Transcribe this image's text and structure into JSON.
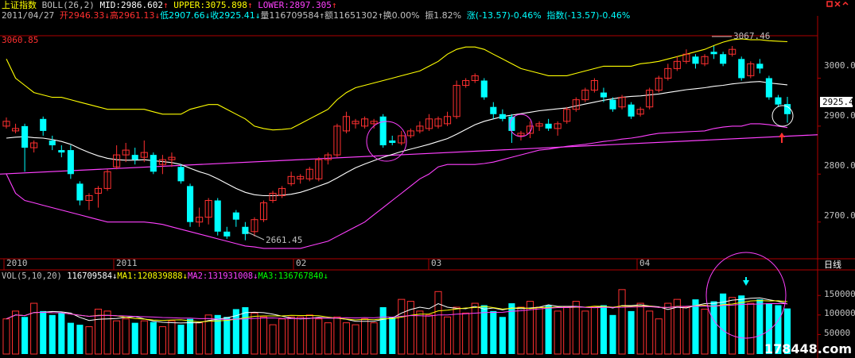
{
  "header": {
    "index_name": "上证指数",
    "indicator": "BOLL(26,2)",
    "mid": "MID:2986.602",
    "upper": "UPPER:3075.898",
    "lower": "LOWER:2897.305",
    "date": "2011/04/27",
    "open": "开2946.33",
    "high": "高2961.13",
    "low": "低2907.66",
    "close": "收2925.41",
    "volume": "量116709584",
    "amount": "额11651302",
    "turnover": "换0.00%",
    "amplitude": "振1.82%",
    "change": "涨(-13.57)-0.46%",
    "index_change": "指数(-13.57)-0.46%"
  },
  "price_axis": {
    "ticks": [
      "3000.0",
      "2900.0",
      "2800.0",
      "2700.0"
    ],
    "current_value": "2925.4",
    "ref_line_label": "3060.85",
    "max_label": "3067.46",
    "min_label": "2661.45"
  },
  "time_axis": {
    "labels": [
      "2010",
      "2011",
      "02",
      "03",
      "04"
    ],
    "period": "日线"
  },
  "volume": {
    "title": "VOL(5,10,20)",
    "value": "116709584",
    "ma1": "MA1:120839888",
    "ma2": "MA2:131931008",
    "ma3": "MA3:136767840",
    "ticks": [
      "150000",
      "100000",
      "50000"
    ]
  },
  "watermark": "178448.com",
  "colors": {
    "up": "#ff3030",
    "down": "#00ffff",
    "mid_line": "#ffffff",
    "upper_line": "#ffff00",
    "lower_line": "#ff40ff",
    "trend_line": "#ff40ff",
    "axis": "#b00000"
  },
  "chart_data": {
    "type": "candlestick",
    "candles": [
      {
        "o": 2900,
        "c": 2910,
        "h": 2918,
        "l": 2895
      },
      {
        "o": 2890,
        "c": 2895,
        "h": 2905,
        "l": 2885
      },
      {
        "o": 2900,
        "c": 2855,
        "h": 2905,
        "l": 2805
      },
      {
        "o": 2855,
        "c": 2865,
        "h": 2870,
        "l": 2845
      },
      {
        "o": 2915,
        "c": 2890,
        "h": 2920,
        "l": 2880
      },
      {
        "o": 2870,
        "c": 2860,
        "h": 2880,
        "l": 2850
      },
      {
        "o": 2850,
        "c": 2845,
        "h": 2860,
        "l": 2835
      },
      {
        "o": 2850,
        "c": 2800,
        "h": 2860,
        "l": 2790
      },
      {
        "o": 2780,
        "c": 2745,
        "h": 2785,
        "l": 2735
      },
      {
        "o": 2745,
        "c": 2755,
        "h": 2760,
        "l": 2725
      },
      {
        "o": 2760,
        "c": 2770,
        "h": 2775,
        "l": 2730
      },
      {
        "o": 2770,
        "c": 2805,
        "h": 2810,
        "l": 2765
      },
      {
        "o": 2815,
        "c": 2840,
        "h": 2860,
        "l": 2810
      },
      {
        "o": 2840,
        "c": 2850,
        "h": 2865,
        "l": 2825
      },
      {
        "o": 2840,
        "c": 2830,
        "h": 2855,
        "l": 2820
      },
      {
        "o": 2835,
        "c": 2845,
        "h": 2870,
        "l": 2825
      },
      {
        "o": 2840,
        "c": 2805,
        "h": 2845,
        "l": 2800
      },
      {
        "o": 2820,
        "c": 2830,
        "h": 2840,
        "l": 2800
      },
      {
        "o": 2830,
        "c": 2835,
        "h": 2845,
        "l": 2815
      },
      {
        "o": 2815,
        "c": 2785,
        "h": 2820,
        "l": 2780
      },
      {
        "o": 2775,
        "c": 2700,
        "h": 2780,
        "l": 2690
      },
      {
        "o": 2700,
        "c": 2710,
        "h": 2730,
        "l": 2690
      },
      {
        "o": 2710,
        "c": 2745,
        "h": 2750,
        "l": 2695
      },
      {
        "o": 2745,
        "c": 2680,
        "h": 2750,
        "l": 2672
      },
      {
        "o": 2680,
        "c": 2670,
        "h": 2690,
        "l": 2665
      },
      {
        "o": 2720,
        "c": 2705,
        "h": 2725,
        "l": 2690
      },
      {
        "o": 2690,
        "c": 2675,
        "h": 2700,
        "l": 2662
      },
      {
        "o": 2680,
        "c": 2705,
        "h": 2710,
        "l": 2670
      },
      {
        "o": 2705,
        "c": 2740,
        "h": 2745,
        "l": 2700
      },
      {
        "o": 2745,
        "c": 2760,
        "h": 2765,
        "l": 2740
      },
      {
        "o": 2755,
        "c": 2770,
        "h": 2775,
        "l": 2750
      },
      {
        "o": 2780,
        "c": 2795,
        "h": 2805,
        "l": 2775
      },
      {
        "o": 2790,
        "c": 2795,
        "h": 2800,
        "l": 2780
      },
      {
        "o": 2790,
        "c": 2810,
        "h": 2815,
        "l": 2785
      },
      {
        "o": 2790,
        "c": 2830,
        "h": 2835,
        "l": 2785
      },
      {
        "o": 2830,
        "c": 2840,
        "h": 2845,
        "l": 2820
      },
      {
        "o": 2840,
        "c": 2900,
        "h": 2905,
        "l": 2835
      },
      {
        "o": 2890,
        "c": 2920,
        "h": 2930,
        "l": 2885
      },
      {
        "o": 2905,
        "c": 2910,
        "h": 2915,
        "l": 2895
      },
      {
        "o": 2900,
        "c": 2915,
        "h": 2920,
        "l": 2895
      },
      {
        "o": 2905,
        "c": 2910,
        "h": 2915,
        "l": 2895
      },
      {
        "o": 2920,
        "c": 2860,
        "h": 2925,
        "l": 2855
      },
      {
        "o": 2870,
        "c": 2865,
        "h": 2880,
        "l": 2860
      },
      {
        "o": 2865,
        "c": 2880,
        "h": 2890,
        "l": 2860
      },
      {
        "o": 2880,
        "c": 2890,
        "h": 2895,
        "l": 2875
      },
      {
        "o": 2890,
        "c": 2900,
        "h": 2910,
        "l": 2885
      },
      {
        "o": 2895,
        "c": 2915,
        "h": 2925,
        "l": 2890
      },
      {
        "o": 2900,
        "c": 2915,
        "h": 2920,
        "l": 2895
      },
      {
        "o": 2905,
        "c": 2920,
        "h": 2930,
        "l": 2900
      },
      {
        "o": 2920,
        "c": 2985,
        "h": 2995,
        "l": 2915
      },
      {
        "o": 2985,
        "c": 2995,
        "h": 3000,
        "l": 2980
      },
      {
        "o": 2995,
        "c": 3005,
        "h": 3010,
        "l": 2990
      },
      {
        "o": 2995,
        "c": 2960,
        "h": 3000,
        "l": 2955
      },
      {
        "o": 2940,
        "c": 2925,
        "h": 2950,
        "l": 2915
      },
      {
        "o": 2925,
        "c": 2915,
        "h": 2935,
        "l": 2910
      },
      {
        "o": 2920,
        "c": 2890,
        "h": 2925,
        "l": 2865
      },
      {
        "o": 2880,
        "c": 2885,
        "h": 2890,
        "l": 2870
      },
      {
        "o": 2885,
        "c": 2900,
        "h": 2910,
        "l": 2875
      },
      {
        "o": 2900,
        "c": 2905,
        "h": 2910,
        "l": 2890
      },
      {
        "o": 2905,
        "c": 2895,
        "h": 2915,
        "l": 2890
      },
      {
        "o": 2895,
        "c": 2905,
        "h": 2910,
        "l": 2880
      },
      {
        "o": 2910,
        "c": 2935,
        "h": 2940,
        "l": 2905
      },
      {
        "o": 2935,
        "c": 2955,
        "h": 2960,
        "l": 2930
      },
      {
        "o": 2955,
        "c": 2975,
        "h": 2980,
        "l": 2950
      },
      {
        "o": 2975,
        "c": 2995,
        "h": 3000,
        "l": 2970
      },
      {
        "o": 2970,
        "c": 2960,
        "h": 2980,
        "l": 2950
      },
      {
        "o": 2955,
        "c": 2935,
        "h": 2960,
        "l": 2930
      },
      {
        "o": 2940,
        "c": 2960,
        "h": 2965,
        "l": 2935
      },
      {
        "o": 2945,
        "c": 2920,
        "h": 2950,
        "l": 2915
      },
      {
        "o": 2925,
        "c": 2935,
        "h": 2940,
        "l": 2920
      },
      {
        "o": 2940,
        "c": 2975,
        "h": 2980,
        "l": 2935
      },
      {
        "o": 2975,
        "c": 3000,
        "h": 3005,
        "l": 2970
      },
      {
        "o": 3000,
        "c": 3020,
        "h": 3030,
        "l": 2995
      },
      {
        "o": 3020,
        "c": 3035,
        "h": 3045,
        "l": 3015
      },
      {
        "o": 3035,
        "c": 3050,
        "h": 3060,
        "l": 3030
      },
      {
        "o": 3045,
        "c": 3030,
        "h": 3050,
        "l": 3020
      },
      {
        "o": 3030,
        "c": 3045,
        "h": 3050,
        "l": 3025
      },
      {
        "o": 3055,
        "c": 3050,
        "h": 3067,
        "l": 3040
      },
      {
        "o": 3050,
        "c": 3030,
        "h": 3055,
        "l": 3025
      },
      {
        "o": 3050,
        "c": 3060,
        "h": 3067,
        "l": 3045
      },
      {
        "o": 3040,
        "c": 3000,
        "h": 3045,
        "l": 2995
      },
      {
        "o": 3005,
        "c": 3030,
        "h": 3035,
        "l": 3000
      },
      {
        "o": 3030,
        "c": 3020,
        "h": 3040,
        "l": 3010
      },
      {
        "o": 3000,
        "c": 2960,
        "h": 3005,
        "l": 2955
      },
      {
        "o": 2960,
        "c": 2945,
        "h": 2965,
        "l": 2940
      },
      {
        "o": 2946,
        "c": 2925,
        "h": 2961,
        "l": 2907
      }
    ],
    "mid": [
      2875,
      2877,
      2878,
      2876,
      2875,
      2872,
      2868,
      2862,
      2853,
      2845,
      2838,
      2833,
      2830,
      2829,
      2829,
      2830,
      2828,
      2826,
      2824,
      2820,
      2812,
      2805,
      2799,
      2790,
      2780,
      2770,
      2762,
      2757,
      2755,
      2755,
      2756,
      2758,
      2762,
      2768,
      2775,
      2782,
      2792,
      2803,
      2813,
      2821,
      2828,
      2835,
      2841,
      2847,
      2852,
      2857,
      2862,
      2868,
      2874,
      2883,
      2893,
      2903,
      2910,
      2915,
      2920,
      2923,
      2926,
      2929,
      2932,
      2934,
      2936,
      2938,
      2942,
      2946,
      2950,
      2954,
      2957,
      2960,
      2962,
      2963,
      2965,
      2967,
      2970,
      2973,
      2976,
      2978,
      2980,
      2983,
      2985,
      2988,
      2990,
      2992,
      2993,
      2990,
      2988,
      2986
    ],
    "upper": [
      3040,
      3000,
      2985,
      2970,
      2965,
      2960,
      2960,
      2955,
      2950,
      2945,
      2940,
      2935,
      2935,
      2935,
      2935,
      2935,
      2930,
      2925,
      2925,
      2925,
      2935,
      2940,
      2945,
      2945,
      2935,
      2925,
      2915,
      2900,
      2895,
      2892,
      2893,
      2895,
      2905,
      2915,
      2925,
      2935,
      2955,
      2970,
      2980,
      2985,
      2990,
      2995,
      3000,
      3005,
      3010,
      3015,
      3025,
      3035,
      3050,
      3060,
      3065,
      3065,
      3060,
      3050,
      3040,
      3030,
      3020,
      3015,
      3010,
      3005,
      3005,
      3005,
      3010,
      3015,
      3020,
      3025,
      3025,
      3025,
      3025,
      3030,
      3032,
      3035,
      3040,
      3045,
      3050,
      3055,
      3060,
      3068,
      3075,
      3080,
      3082,
      3080,
      3080,
      3078,
      3077,
      3076
    ],
    "lower": [
      2800,
      2760,
      2745,
      2740,
      2735,
      2730,
      2725,
      2720,
      2715,
      2710,
      2705,
      2700,
      2700,
      2700,
      2700,
      2700,
      2698,
      2695,
      2690,
      2685,
      2680,
      2675,
      2670,
      2665,
      2660,
      2655,
      2650,
      2648,
      2645,
      2645,
      2645,
      2645,
      2645,
      2650,
      2655,
      2660,
      2670,
      2680,
      2690,
      2700,
      2715,
      2730,
      2745,
      2760,
      2775,
      2790,
      2800,
      2815,
      2820,
      2820,
      2820,
      2820,
      2822,
      2825,
      2830,
      2835,
      2840,
      2845,
      2850,
      2852,
      2855,
      2858,
      2860,
      2862,
      2865,
      2868,
      2870,
      2873,
      2875,
      2878,
      2882,
      2885,
      2886,
      2887,
      2888,
      2889,
      2890,
      2895,
      2898,
      2900,
      2900,
      2905,
      2905,
      2903,
      2900,
      2897
    ],
    "volume": [
      90000,
      110000,
      95000,
      130000,
      110000,
      100000,
      105000,
      80000,
      75000,
      70000,
      115000,
      110000,
      85000,
      90000,
      80000,
      85000,
      82000,
      70000,
      85000,
      75000,
      90000,
      80000,
      100000,
      100000,
      95000,
      115000,
      120000,
      105000,
      95000,
      75000,
      90000,
      95000,
      95000,
      100000,
      90000,
      80000,
      95000,
      80000,
      75000,
      90000,
      80000,
      120000,
      95000,
      140000,
      135000,
      110000,
      100000,
      160000,
      95000,
      120000,
      105000,
      130000,
      125000,
      110000,
      95000,
      130000,
      120000,
      135000,
      120000,
      125000,
      110000,
      120000,
      135000,
      110000,
      120000,
      125000,
      100000,
      165000,
      110000,
      130000,
      110000,
      90000,
      130000,
      140000,
      120000,
      140000,
      115000,
      135000,
      155000,
      145000,
      150000,
      130000,
      140000,
      130000,
      125000,
      116709
    ],
    "trend_line": {
      "start": 2800,
      "end": 2882
    },
    "price_range": [
      2630,
      3110
    ],
    "volume_range": [
      0,
      185000
    ]
  }
}
